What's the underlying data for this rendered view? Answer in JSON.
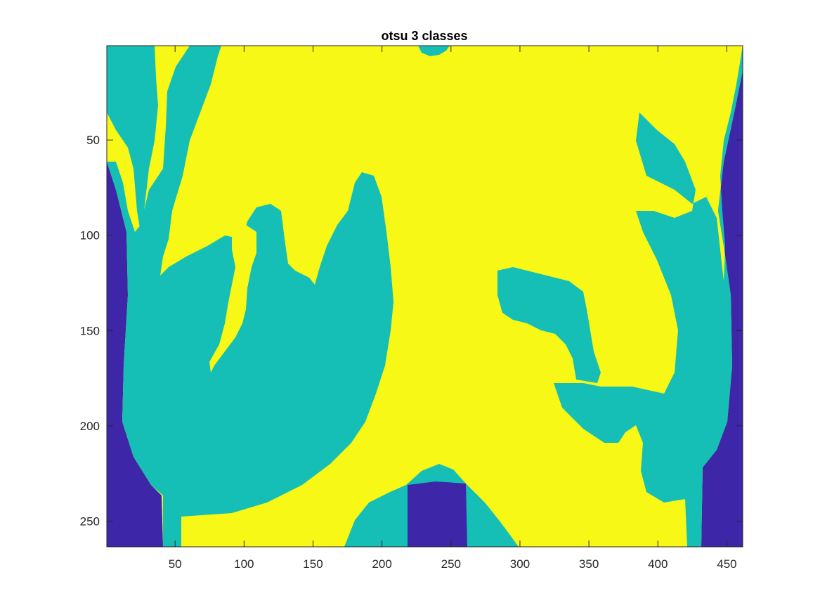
{
  "figure": {
    "title": "otsu 3 classes",
    "colors": {
      "class_low": "#3e26a8",
      "class_mid": "#15bfb6",
      "class_high": "#f8f816",
      "axes_line": "#262626",
      "background": "#ffffff"
    },
    "x_axis": {
      "range": [
        0.5,
        461.5
      ],
      "ticks": [
        50,
        100,
        150,
        200,
        250,
        300,
        350,
        400,
        450
      ],
      "tick_labels": [
        "50",
        "100",
        "150",
        "200",
        "250",
        "300",
        "350",
        "400",
        "450"
      ]
    },
    "y_axis": {
      "range": [
        0.5,
        263.5
      ],
      "direction": "reverse",
      "ticks": [
        50,
        100,
        150,
        200,
        250
      ],
      "tick_labels": [
        "50",
        "100",
        "150",
        "200",
        "250"
      ]
    },
    "image_description_classes": [
      "dark",
      "mid",
      "bright"
    ]
  }
}
